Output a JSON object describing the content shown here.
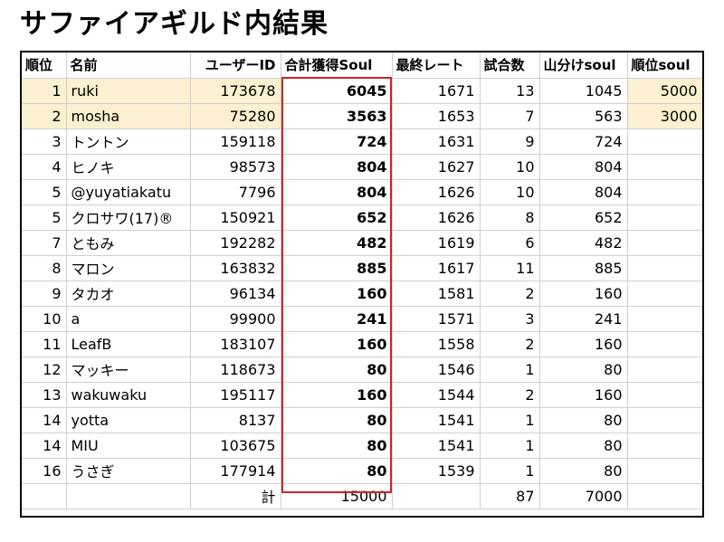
{
  "title": "サファイアギルド内結果",
  "headers": [
    "順位",
    "名前",
    "ユーザーID",
    "合計獲得Soul",
    "最終レート",
    "試合数",
    "山分けsoul",
    "順位soul"
  ],
  "rows": [
    {
      "rank": "1",
      "name": "ruki",
      "uid": "173678",
      "soul": "6045",
      "rate": "1671",
      "games": "13",
      "split": "1045",
      "rank_soul": "5000"
    },
    {
      "rank": "2",
      "name": "mosha",
      "uid": "75280",
      "soul": "3563",
      "rate": "1653",
      "games": "7",
      "split": "563",
      "rank_soul": "3000"
    },
    {
      "rank": "3",
      "name": "トントン",
      "uid": "159118",
      "soul": "724",
      "rate": "1631",
      "games": "9",
      "split": "724",
      "rank_soul": ""
    },
    {
      "rank": "4",
      "name": "ヒノキ",
      "uid": "98573",
      "soul": "804",
      "rate": "1627",
      "games": "10",
      "split": "804",
      "rank_soul": ""
    },
    {
      "rank": "5",
      "name": "@yuyatiakatu",
      "uid": "7796",
      "soul": "804",
      "rate": "1626",
      "games": "10",
      "split": "804",
      "rank_soul": ""
    },
    {
      "rank": "5",
      "name": "クロサワ(17)®",
      "uid": "150921",
      "soul": "652",
      "rate": "1626",
      "games": "8",
      "split": "652",
      "rank_soul": ""
    },
    {
      "rank": "7",
      "name": "ともみ",
      "uid": "192282",
      "soul": "482",
      "rate": "1619",
      "games": "6",
      "split": "482",
      "rank_soul": ""
    },
    {
      "rank": "8",
      "name": "マロン",
      "uid": "163832",
      "soul": "885",
      "rate": "1617",
      "games": "11",
      "split": "885",
      "rank_soul": ""
    },
    {
      "rank": "9",
      "name": "タカオ",
      "uid": "96134",
      "soul": "160",
      "rate": "1581",
      "games": "2",
      "split": "160",
      "rank_soul": ""
    },
    {
      "rank": "10",
      "name": "a",
      "uid": "99900",
      "soul": "241",
      "rate": "1571",
      "games": "3",
      "split": "241",
      "rank_soul": ""
    },
    {
      "rank": "11",
      "name": "LeafB",
      "uid": "183107",
      "soul": "160",
      "rate": "1558",
      "games": "2",
      "split": "160",
      "rank_soul": ""
    },
    {
      "rank": "12",
      "name": "マッキー",
      "uid": "118673",
      "soul": "80",
      "rate": "1546",
      "games": "1",
      "split": "80",
      "rank_soul": ""
    },
    {
      "rank": "13",
      "name": "wakuwaku",
      "uid": "195117",
      "soul": "160",
      "rate": "1544",
      "games": "2",
      "split": "160",
      "rank_soul": ""
    },
    {
      "rank": "14",
      "name": "yotta",
      "uid": "8137",
      "soul": "80",
      "rate": "1541",
      "games": "1",
      "split": "80",
      "rank_soul": ""
    },
    {
      "rank": "14",
      "name": "MIU",
      "uid": "103675",
      "soul": "80",
      "rate": "1541",
      "games": "1",
      "split": "80",
      "rank_soul": ""
    },
    {
      "rank": "16",
      "name": "うさぎ",
      "uid": "177914",
      "soul": "80",
      "rate": "1539",
      "games": "1",
      "split": "80",
      "rank_soul": ""
    }
  ],
  "totals": {
    "label": "計",
    "soul": "15000",
    "games": "87",
    "split": "7000"
  },
  "colors": {
    "highlight": "#fbf0cf",
    "box": "#c8262a",
    "grid": "#cfcfcf"
  }
}
